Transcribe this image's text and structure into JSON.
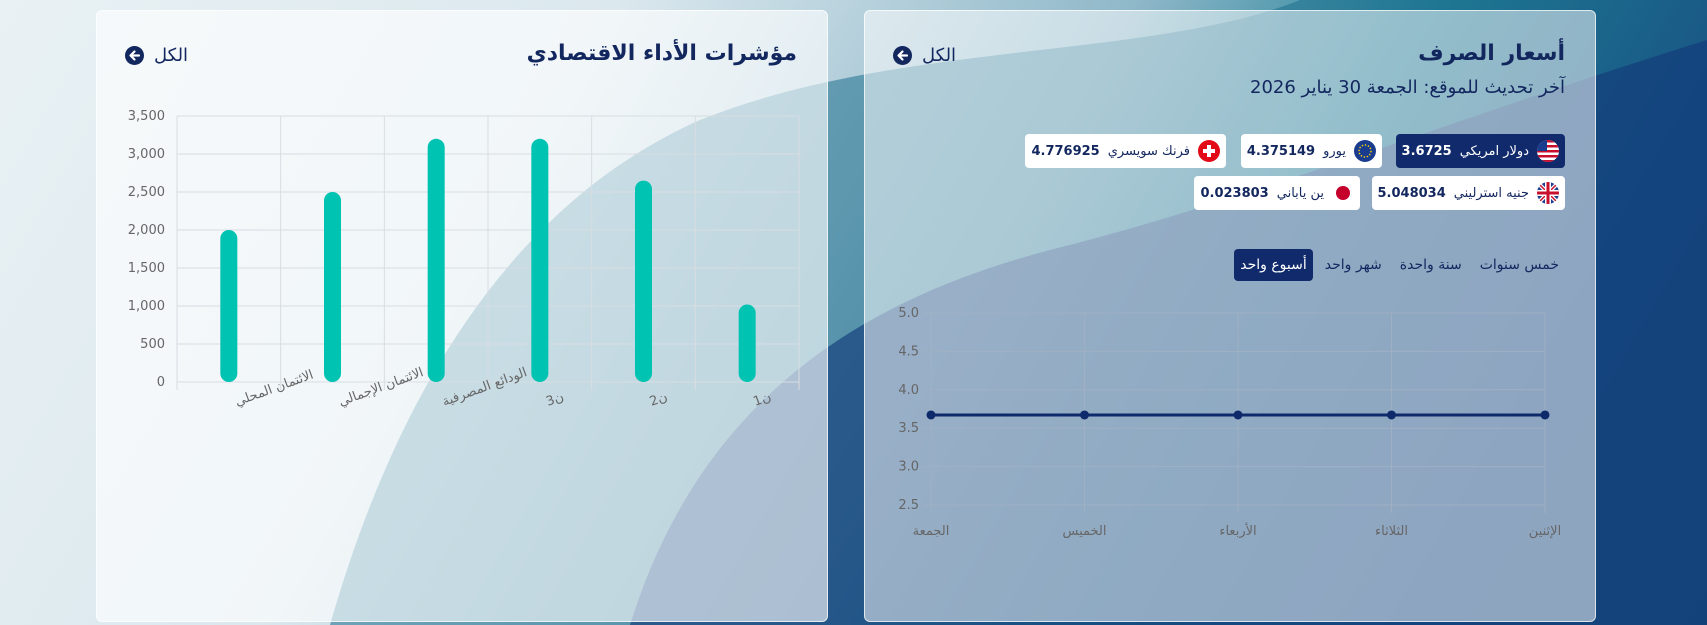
{
  "econ_panel": {
    "title": "مؤشرات الأداء الاقتصادي",
    "all_label": "الكل",
    "chart_data": {
      "type": "bar",
      "categories": [
        "الائتمان المحلي",
        "الائتمان الإجمالي",
        "الودائع المصرفية",
        "ن3",
        "ن2",
        "ن1"
      ],
      "values": [
        2000,
        2500,
        3200,
        3200,
        2650,
        1020
      ],
      "ylim": [
        0,
        3500
      ],
      "yticks": [
        0,
        500,
        1000,
        1500,
        2000,
        2500,
        3000,
        3500
      ],
      "ytick_labels": [
        "0",
        "500",
        "1,000",
        "1,500",
        "2,000",
        "2,500",
        "3,000",
        "3,500"
      ],
      "bar_color": "#00c3b2",
      "grid": true
    }
  },
  "fx_panel": {
    "title": "أسعار الصرف",
    "all_label": "الكل",
    "updated": "آخر تحديث للموقع: الجمعة 30 يناير 2026",
    "currencies": [
      {
        "name": "دولار امريكي",
        "value": "3.6725",
        "icon": "us-flag-icon",
        "active": true
      },
      {
        "name": "يورو",
        "value": "4.375149",
        "icon": "eu-flag-icon",
        "active": false
      },
      {
        "name": "فرنك سويسري",
        "value": "4.776925",
        "icon": "swiss-flag-icon",
        "active": false
      },
      {
        "name": "جنيه استرليني",
        "value": "5.048034",
        "icon": "uk-flag-icon",
        "active": false
      },
      {
        "name": "ين ياباني",
        "value": "0.023803",
        "icon": "japan-flag-icon",
        "active": false
      }
    ],
    "tabs": [
      {
        "label": "أسبوع واحد",
        "active": true
      },
      {
        "label": "شهر واحد",
        "active": false
      },
      {
        "label": "سنة واحدة",
        "active": false
      },
      {
        "label": "خمس سنوات",
        "active": false
      }
    ],
    "chart_data": {
      "type": "line",
      "x": [
        "الجمعة",
        "الخميس",
        "الأربعاء",
        "الثلاثاء",
        "الإثنين"
      ],
      "values": [
        3.6725,
        3.6725,
        3.6725,
        3.6725,
        3.6725
      ],
      "ylim": [
        2.5,
        5.0
      ],
      "yticks": [
        2.5,
        3.0,
        3.5,
        4.0,
        4.5,
        5.0
      ],
      "ytick_labels": [
        "2.5",
        "3.0",
        "3.5",
        "4.0",
        "4.5",
        "5.0"
      ],
      "line_color": "#0f2a6b",
      "grid": true
    }
  },
  "colors": {
    "navy": "#13275f",
    "teal": "#00c3b2"
  }
}
